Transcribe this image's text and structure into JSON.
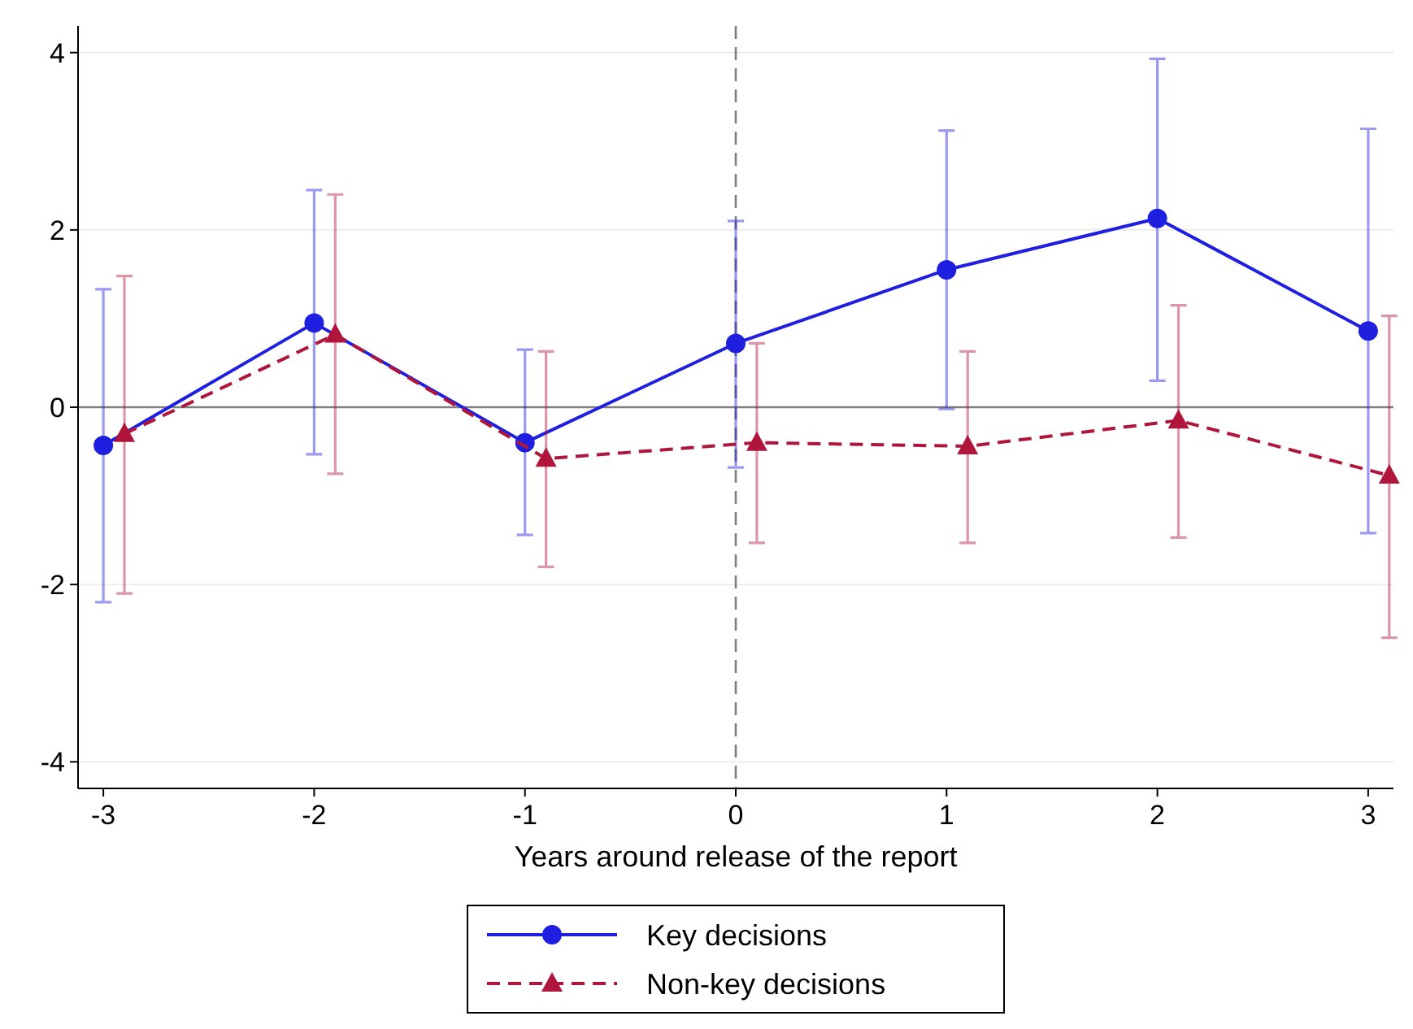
{
  "chart_data": {
    "type": "line",
    "xlabel": "Years around release of the report",
    "xlim": [
      -3.12,
      3.12
    ],
    "xticks": [
      -3,
      -2,
      -1,
      0,
      1,
      2,
      3
    ],
    "ylim": [
      -4.3,
      4.3
    ],
    "yticks": [
      -4,
      -2,
      0,
      2,
      4
    ],
    "grid": "y",
    "legend": "bottom",
    "ref_lines": [
      {
        "axis": "x",
        "value": 0,
        "color": "#7f7f7f",
        "line_style": "dashed"
      },
      {
        "axis": "y",
        "value": 0,
        "color": "#7f7f7f",
        "line_style": "solid"
      }
    ],
    "series": [
      {
        "name": "Key decisions",
        "color": "#1f1fe0",
        "marker": "circle",
        "line_style": "solid",
        "x": [
          -3,
          -2,
          -1,
          0,
          1,
          2,
          3
        ],
        "values": [
          -0.43,
          0.95,
          -0.4,
          0.72,
          1.55,
          2.13,
          0.86
        ],
        "errors": [
          [
            -2.2,
            1.33
          ],
          [
            -0.53,
            2.45
          ],
          [
            -1.44,
            0.65
          ],
          [
            -0.68,
            2.1
          ],
          [
            -0.02,
            3.12
          ],
          [
            0.3,
            3.93
          ],
          [
            -1.42,
            3.14
          ]
        ]
      },
      {
        "name": "Non-key decisions",
        "color": "#b0163c",
        "marker": "triangle",
        "line_style": "dashed",
        "x": [
          -2.9,
          -1.9,
          -0.9,
          0.1,
          1.1,
          2.1,
          3.1
        ],
        "values": [
          -0.3,
          0.82,
          -0.58,
          -0.4,
          -0.44,
          -0.15,
          -0.77
        ],
        "errors": [
          [
            -2.1,
            1.48
          ],
          [
            -0.75,
            2.4
          ],
          [
            -1.8,
            0.63
          ],
          [
            -1.53,
            0.72
          ],
          [
            -1.53,
            0.63
          ],
          [
            -1.47,
            1.15
          ],
          [
            -2.6,
            1.03
          ]
        ]
      }
    ]
  }
}
